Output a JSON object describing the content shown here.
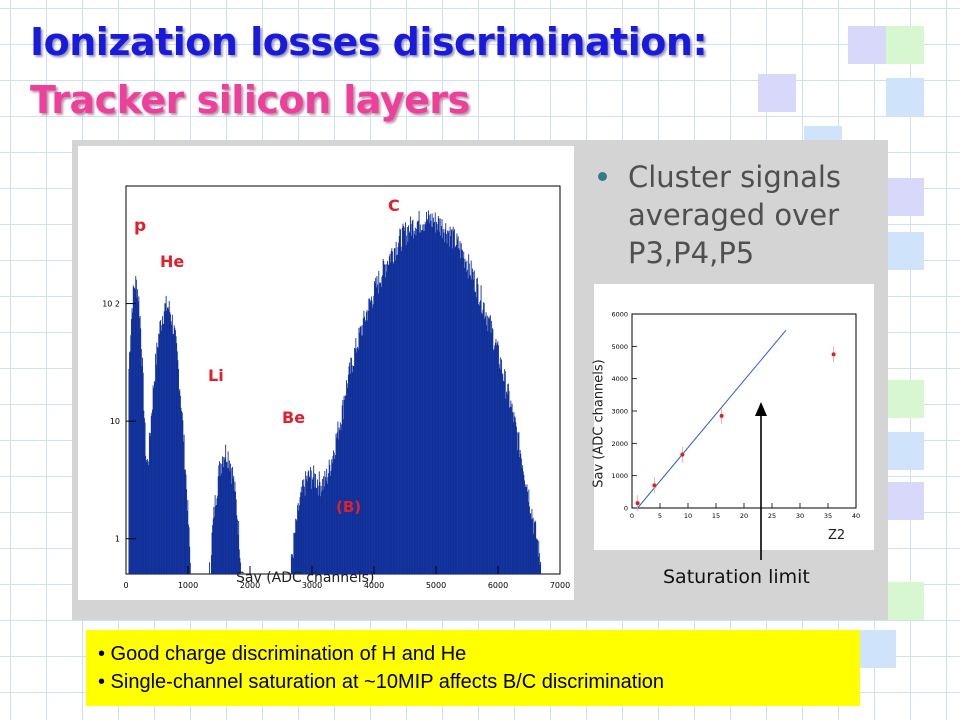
{
  "slide": {
    "title_line1": "Ionization losses discrimination:",
    "title_line2": "Tracker silicon layers"
  },
  "bullet": {
    "text": "Cluster signals averaged over P3,P4,P5"
  },
  "histogram": {
    "xlabel": "Sav (ADC channels)",
    "x_ticks": [
      "0",
      "1000",
      "2000",
      "3000",
      "4000",
      "5000",
      "6000",
      "7000"
    ],
    "y_ticks": [
      "1",
      "10",
      "10 2"
    ],
    "peak_labels": [
      {
        "text": "p",
        "color": "#e0202a"
      },
      {
        "text": "He",
        "color": "#e0202a"
      },
      {
        "text": "Li",
        "color": "#e0202a"
      },
      {
        "text": "Be",
        "color": "#e0202a"
      },
      {
        "text": "C",
        "color": "#e0202a"
      },
      {
        "text": "(B)",
        "color": "#e0202a"
      }
    ],
    "fill_color": "#10309a"
  },
  "inset": {
    "ylabel": "Sav (ADC channels)",
    "xlabel": "Z2",
    "y_ticks": [
      "0",
      "1000",
      "2000",
      "3000",
      "4000",
      "5000",
      "6000"
    ],
    "x_ticks": [
      "0",
      "5",
      "10",
      "15",
      "20",
      "25",
      "30",
      "35",
      "40"
    ],
    "saturation_label": "Saturation limit"
  },
  "chart_data": {
    "type": "scatter",
    "title": "",
    "xlabel": "Z2",
    "ylabel": "Sav (ADC channels)",
    "xlim": [
      0,
      40
    ],
    "ylim": [
      0,
      6000
    ],
    "series": [
      {
        "x": [
          1,
          4,
          9,
          16,
          36
        ],
        "y": [
          150,
          700,
          1650,
          2850,
          4750
        ]
      }
    ],
    "fit_line": {
      "x": [
        1,
        27.5
      ],
      "y": [
        0,
        5500
      ]
    }
  },
  "notes": {
    "line1": "• Good charge discrimination of H and He",
    "line2": "• Single-channel saturation at ~10MIP affects B/C discrimination"
  },
  "colors": {
    "title1": "#1a1add",
    "title2": "#ee3f9a",
    "histogram_fill": "#10309a",
    "peak_label": "#e0202a",
    "note_box": "#ffff00",
    "fit_line": "#2a5fd0",
    "points": "#e02020"
  }
}
